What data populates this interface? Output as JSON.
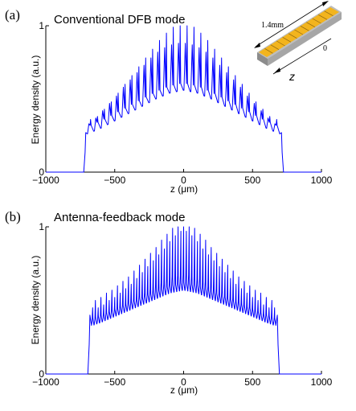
{
  "chart_data": [
    {
      "type": "line",
      "panel_label": "(a)",
      "title": "Conventional DFB mode",
      "xlabel": "z (μm)",
      "ylabel": "Energy density (a.u.)",
      "xlim": [
        -1000,
        1000
      ],
      "ylim": [
        0,
        1
      ],
      "x_ticks": [
        "−1000",
        "−500",
        "0",
        "500",
        "1000"
      ],
      "x_tick_values": [
        -1000,
        -500,
        0,
        500,
        1000
      ],
      "y_ticks": [
        "0",
        "1"
      ],
      "y_tick_values": [
        0,
        1
      ],
      "grid": false,
      "series": [
        {
          "color": "#0000ff",
          "line_style": "solid",
          "edge_start": -710,
          "edge_end": 710,
          "edge_level": 0.27,
          "envelope_x": [
            -700,
            -600,
            -500,
            -400,
            -300,
            -200,
            -100,
            0,
            100,
            200,
            300,
            400,
            500,
            600,
            700
          ],
          "envelope_y": [
            0.26,
            0.3,
            0.35,
            0.4,
            0.45,
            0.5,
            0.54,
            0.56,
            0.54,
            0.5,
            0.45,
            0.4,
            0.35,
            0.3,
            0.26
          ],
          "spike_x": [
            -675,
            -625,
            -575,
            -525,
            -475,
            -425,
            -375,
            -325,
            -275,
            -225,
            -175,
            -125,
            -75,
            -25,
            25,
            75,
            125,
            175,
            225,
            275,
            325,
            375,
            425,
            475,
            525,
            575,
            625,
            675
          ],
          "spike_y": [
            0.36,
            0.38,
            0.43,
            0.48,
            0.54,
            0.6,
            0.66,
            0.72,
            0.78,
            0.84,
            0.9,
            0.95,
            0.99,
            1.0,
            1.0,
            0.99,
            0.95,
            0.9,
            0.84,
            0.78,
            0.72,
            0.66,
            0.6,
            0.54,
            0.48,
            0.43,
            0.38,
            0.36
          ],
          "bump_y": [
            0.33,
            0.37,
            0.42,
            0.47,
            0.52,
            0.58,
            0.63,
            0.68,
            0.73,
            0.78,
            0.82,
            0.85,
            0.87,
            0.88,
            0.88,
            0.87,
            0.85,
            0.82,
            0.78,
            0.73,
            0.68,
            0.63,
            0.58,
            0.52,
            0.47,
            0.42,
            0.37,
            0.33
          ]
        }
      ]
    },
    {
      "type": "line",
      "panel_label": "(b)",
      "title": "Antenna-feedback mode",
      "xlabel": "z (μm)",
      "ylabel": "Energy density (a.u.)",
      "xlim": [
        -1000,
        1000
      ],
      "ylim": [
        0,
        1
      ],
      "x_ticks": [
        "−1000",
        "−500",
        "0",
        "500",
        "1000"
      ],
      "x_tick_values": [
        -1000,
        -500,
        0,
        500,
        1000
      ],
      "y_ticks": [
        "0",
        "1"
      ],
      "y_tick_values": [
        0,
        1
      ],
      "grid": false,
      "series": [
        {
          "color": "#0000ff",
          "line_style": "solid",
          "edge_start": -680,
          "edge_end": 680,
          "edge_level": 0.4,
          "envelope_x": [
            -660,
            -600,
            -500,
            -400,
            -300,
            -200,
            -100,
            0,
            100,
            200,
            300,
            400,
            500,
            600,
            660
          ],
          "envelope_y": [
            0.33,
            0.35,
            0.39,
            0.43,
            0.47,
            0.51,
            0.55,
            0.57,
            0.55,
            0.51,
            0.47,
            0.43,
            0.39,
            0.35,
            0.33
          ],
          "spike_x": [
            -660,
            -640,
            -620,
            -600,
            -580,
            -560,
            -540,
            -520,
            -500,
            -480,
            -460,
            -440,
            -420,
            -400,
            -380,
            -360,
            -340,
            -320,
            -300,
            -280,
            -260,
            -240,
            -220,
            -200,
            -180,
            -160,
            -140,
            -120,
            -100,
            -80,
            -60,
            -40,
            -20,
            0,
            20,
            40,
            60,
            80,
            100,
            120,
            140,
            160,
            180,
            200,
            220,
            240,
            260,
            280,
            300,
            320,
            340,
            360,
            380,
            400,
            420,
            440,
            460,
            480,
            500,
            520,
            540,
            560,
            580,
            600,
            620,
            640,
            660
          ],
          "spike_y": [
            0.45,
            0.5,
            0.45,
            0.52,
            0.47,
            0.55,
            0.5,
            0.57,
            0.52,
            0.6,
            0.55,
            0.63,
            0.58,
            0.66,
            0.61,
            0.7,
            0.65,
            0.74,
            0.69,
            0.78,
            0.73,
            0.82,
            0.77,
            0.86,
            0.81,
            0.91,
            0.85,
            0.95,
            0.9,
            0.99,
            0.94,
            1.0,
            0.97,
            1.0,
            0.97,
            1.0,
            0.94,
            0.99,
            0.9,
            0.95,
            0.85,
            0.91,
            0.81,
            0.86,
            0.77,
            0.82,
            0.73,
            0.78,
            0.69,
            0.74,
            0.65,
            0.7,
            0.61,
            0.66,
            0.58,
            0.63,
            0.55,
            0.6,
            0.52,
            0.57,
            0.5,
            0.55,
            0.47,
            0.52,
            0.45,
            0.5,
            0.45
          ]
        }
      ]
    }
  ],
  "inset": {
    "length_label": "1.4mm",
    "origin_label": "0",
    "axis_label": "z",
    "colors": {
      "grating": "#f2b41e",
      "grating_slits": "#8a6510",
      "substrate_top": "#bdbdbd",
      "substrate_side": "#8c8c8c",
      "substrate_end": "#a6a6a6"
    }
  }
}
